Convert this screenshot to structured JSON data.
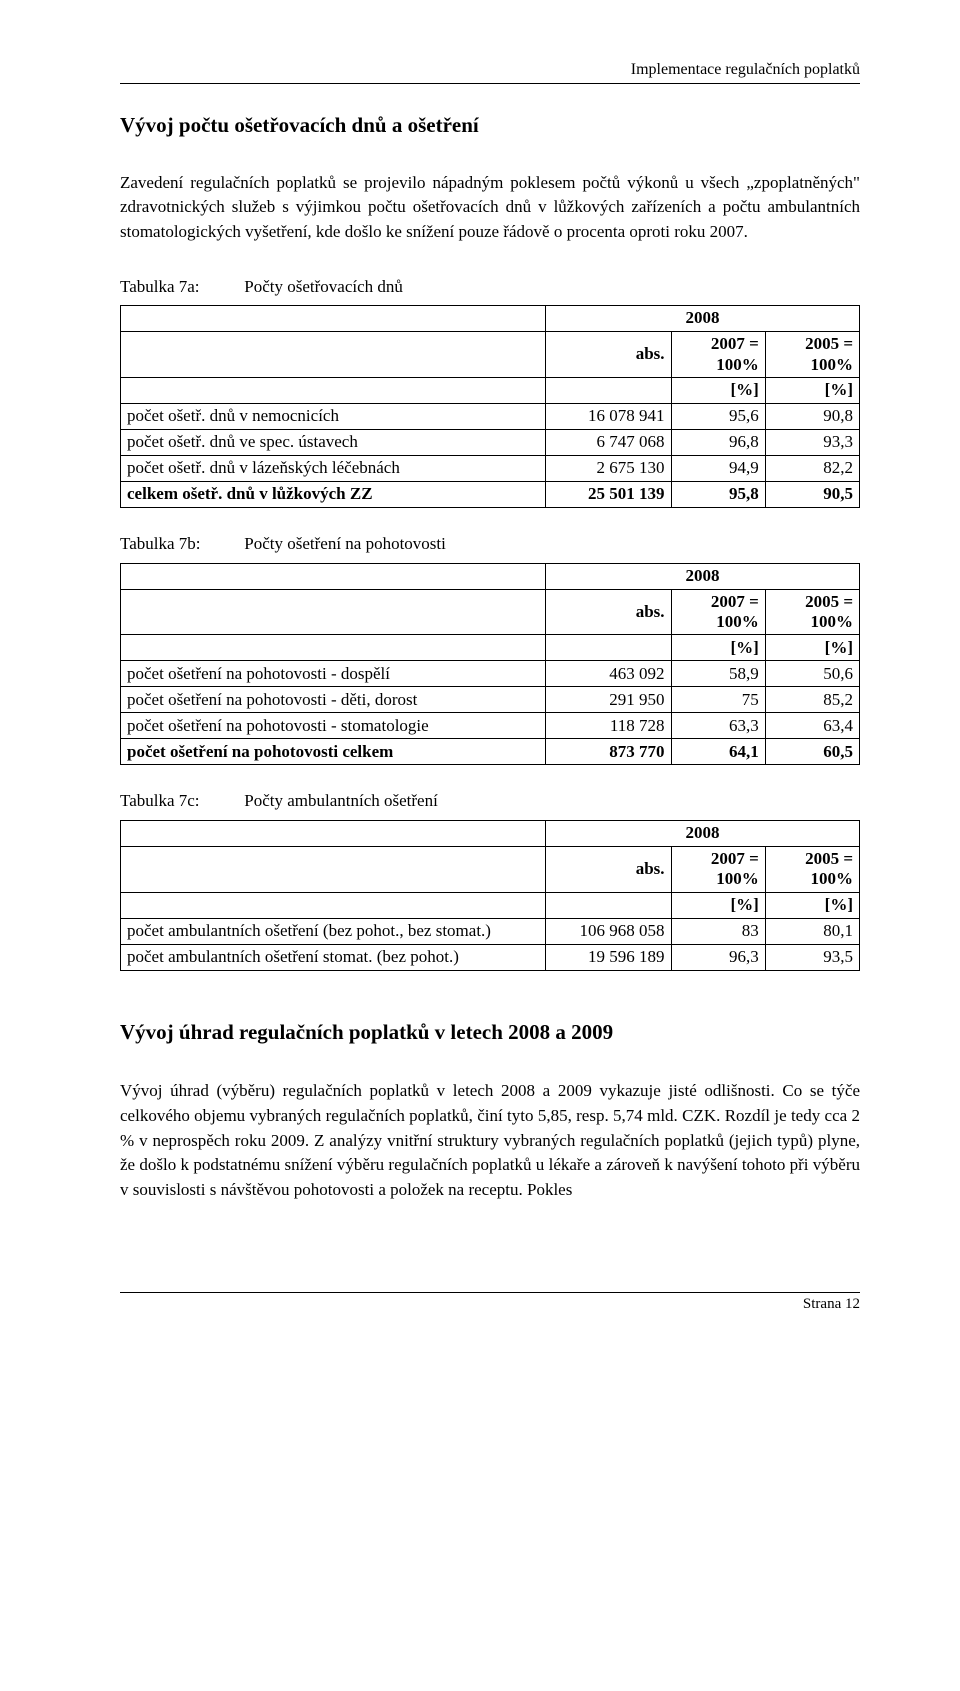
{
  "header": {
    "right": "Implementace regulačních poplatků"
  },
  "section1": {
    "title": "Vývoj počtu ošetřovacích dnů a ošetření",
    "para": "Zavedení regulačních poplatků se projevilo nápadným poklesem počtů výkonů u všech „zpoplatněných\" zdravotnických služeb s výjimkou počtu ošetřovacích dnů v lůžkových zařízeních a počtu ambulantních stomatologických vyšetření, kde došlo ke snížení pouze řádově o procenta oproti roku 2007."
  },
  "table_a": {
    "key": "Tabulka 7a:",
    "caption": "Počty ošetřovacích dnů",
    "h_year": "2008",
    "h_abs": "abs.",
    "h_2007": "2007 = 100%",
    "h_2005": "2005 = 100%",
    "h_pct": "[%]",
    "rows": [
      {
        "label": "počet ošetř. dnů v nemocnicích",
        "abs": "16 078 941",
        "p1": "95,6",
        "p2": "90,8"
      },
      {
        "label": "počet ošetř. dnů ve spec. ústavech",
        "abs": "6 747 068",
        "p1": "96,8",
        "p2": "93,3"
      },
      {
        "label": "počet ošetř. dnů v lázeňských léčebnách",
        "abs": "2 675 130",
        "p1": "94,9",
        "p2": "82,2"
      },
      {
        "label": "celkem ošetř. dnů v lůžkových ZZ",
        "abs": "25 501 139",
        "p1": "95,8",
        "p2": "90,5",
        "bold": true
      }
    ]
  },
  "table_b": {
    "key": "Tabulka 7b:",
    "caption": "Počty ošetření na pohotovosti",
    "h_year": "2008",
    "h_abs": "abs.",
    "h_2007": "2007 = 100%",
    "h_2005": "2005 = 100%",
    "h_pct": "[%]",
    "rows": [
      {
        "label": "počet ošetření na pohotovosti - dospělí",
        "abs": "463 092",
        "p1": "58,9",
        "p2": "50,6"
      },
      {
        "label": "počet ošetření na pohotovosti - děti, dorost",
        "abs": "291 950",
        "p1": "75",
        "p2": "85,2"
      },
      {
        "label": "počet ošetření na pohotovosti - stomatologie",
        "abs": "118 728",
        "p1": "63,3",
        "p2": "63,4"
      },
      {
        "label": "počet ošetření na pohotovosti celkem",
        "abs": "873 770",
        "p1": "64,1",
        "p2": "60,5",
        "bold": true
      }
    ]
  },
  "table_c": {
    "key": "Tabulka 7c:",
    "caption": "Počty ambulantních ošetření",
    "h_year": "2008",
    "h_abs": "abs.",
    "h_2007": "2007 = 100%",
    "h_2005": "2005 = 100%",
    "h_pct": "[%]",
    "rows": [
      {
        "label": "počet ambulantních ošetření (bez pohot., bez stomat.)",
        "abs": "106 968 058",
        "p1": "83",
        "p2": "80,1"
      },
      {
        "label": "počet ambulantních ošetření stomat. (bez pohot.)",
        "abs": "19 596 189",
        "p1": "96,3",
        "p2": "93,5"
      }
    ]
  },
  "section2": {
    "title": "Vývoj úhrad regulačních poplatků v letech 2008 a 2009",
    "para": "Vývoj úhrad (výběru) regulačních poplatků v letech 2008 a 2009 vykazuje jisté odlišnosti. Co se týče celkového objemu vybraných regulačních poplatků, činí tyto 5,85, resp. 5,74 mld. CZK. Rozdíl je tedy cca 2 % v neprospěch roku 2009. Z analýzy vnitřní struktury vybraných regulačních poplatků (jejich typů) plyne, že došlo k podstatnému snížení výběru regulačních poplatků u lékaře a zároveň k navýšení tohoto při výběru v souvislosti s návštěvou pohotovosti a položek na receptu. Pokles"
  },
  "footer": {
    "page": "Strana 12"
  }
}
